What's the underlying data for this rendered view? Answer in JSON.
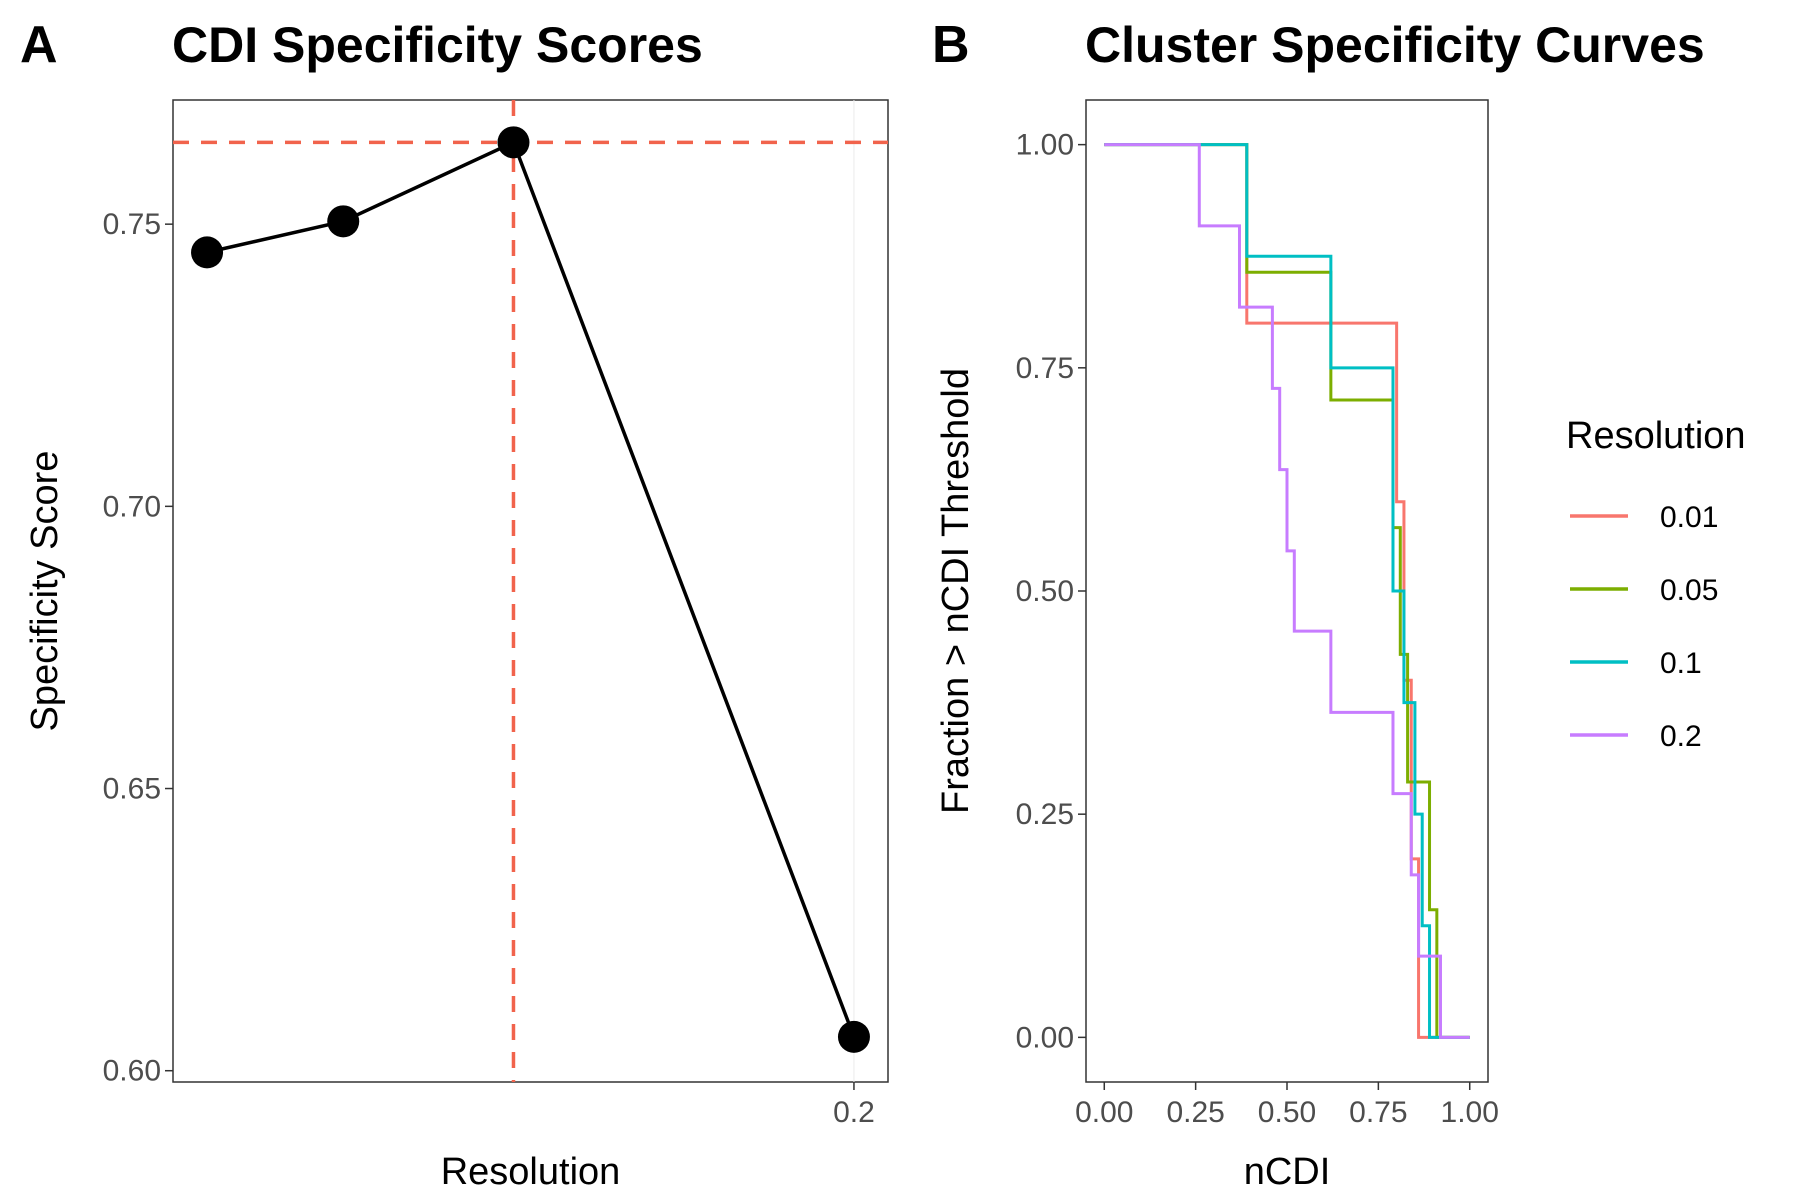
{
  "panels": {
    "a": {
      "letter": "A",
      "title": "CDI Specificity Scores"
    },
    "b": {
      "letter": "B",
      "title": "Cluster Specificity Curves"
    }
  },
  "chart_data": [
    {
      "type": "line",
      "title": "CDI Specificity Scores",
      "xlabel": "Resolution",
      "ylabel": "Specificity Score",
      "x_tick_labels": [
        "0.2"
      ],
      "y_ticks": [
        0.6,
        0.65,
        0.7,
        0.75
      ],
      "y_tick_labels": [
        "0.60",
        "0.65",
        "0.70",
        "0.75"
      ],
      "xlim": [
        0.0,
        0.21
      ],
      "ylim": [
        0.598,
        0.772
      ],
      "series": [
        {
          "x": [
            0.01,
            0.05,
            0.1,
            0.2
          ],
          "values": [
            0.745,
            0.7505,
            0.7645,
            0.606
          ]
        }
      ],
      "reference_lines": {
        "x": 0.1,
        "y": 0.7645,
        "color": "#f1634c",
        "style": "dashed"
      },
      "grid": false
    },
    {
      "type": "line",
      "title": "Cluster Specificity Curves",
      "xlabel": "nCDI",
      "ylabel": "Fraction > nCDI Threshold",
      "x_ticks": [
        0,
        0.25,
        0.5,
        0.75,
        1
      ],
      "x_tick_labels": [
        "0.00",
        "0.25",
        "0.50",
        "0.75",
        "1.00"
      ],
      "y_ticks": [
        0,
        0.25,
        0.5,
        0.75,
        1
      ],
      "y_tick_labels": [
        "0.00",
        "0.25",
        "0.50",
        "0.75",
        "1.00"
      ],
      "xlim": [
        -0.05,
        1.05
      ],
      "ylim": [
        -0.05,
        1.05
      ],
      "legend": {
        "title": "Resolution",
        "placement": "right"
      },
      "grid": false,
      "series": [
        {
          "name": "0.01",
          "color": "#f8766d",
          "x": [
            0.0,
            0.39,
            0.39,
            0.8,
            0.8,
            0.82,
            0.82,
            0.84,
            0.84,
            0.86,
            0.86,
            1.0
          ],
          "values": [
            1.0,
            1.0,
            0.8,
            0.8,
            0.6,
            0.6,
            0.4,
            0.4,
            0.2,
            0.2,
            0.0,
            0.0
          ]
        },
        {
          "name": "0.05",
          "color": "#7cae00",
          "x": [
            0.0,
            0.39,
            0.39,
            0.62,
            0.62,
            0.79,
            0.79,
            0.81,
            0.81,
            0.83,
            0.83,
            0.89,
            0.89,
            0.91,
            0.91,
            1.0
          ],
          "values": [
            1.0,
            1.0,
            0.857,
            0.857,
            0.714,
            0.714,
            0.571,
            0.571,
            0.429,
            0.429,
            0.286,
            0.286,
            0.143,
            0.143,
            0.0,
            0.0
          ]
        },
        {
          "name": "0.1",
          "color": "#00bfc4",
          "x": [
            0.0,
            0.39,
            0.39,
            0.62,
            0.62,
            0.79,
            0.79,
            0.82,
            0.82,
            0.85,
            0.85,
            0.87,
            0.87,
            0.89,
            0.89,
            0.91,
            0.91,
            1.0
          ],
          "values": [
            1.0,
            1.0,
            0.875,
            0.875,
            0.75,
            0.75,
            0.5,
            0.5,
            0.375,
            0.375,
            0.25,
            0.25,
            0.125,
            0.125,
            0.0,
            0.0,
            0.0,
            0.0
          ]
        },
        {
          "name": "0.2",
          "color": "#c77cff",
          "x": [
            0.0,
            0.26,
            0.26,
            0.37,
            0.37,
            0.46,
            0.46,
            0.48,
            0.48,
            0.5,
            0.5,
            0.52,
            0.52,
            0.54,
            0.54,
            0.62,
            0.62,
            0.79,
            0.79,
            0.81,
            0.81,
            0.84,
            0.84,
            0.86,
            0.86,
            0.88,
            0.88,
            0.92,
            0.92,
            1.0
          ],
          "values": [
            1.0,
            1.0,
            0.909,
            0.909,
            0.818,
            0.818,
            0.727,
            0.727,
            0.636,
            0.636,
            0.545,
            0.545,
            0.455,
            0.455,
            0.455,
            0.455,
            0.364,
            0.364,
            0.273,
            0.273,
            0.273,
            0.273,
            0.182,
            0.182,
            0.091,
            0.091,
            0.091,
            0.091,
            0.0,
            0.0
          ]
        }
      ]
    }
  ]
}
